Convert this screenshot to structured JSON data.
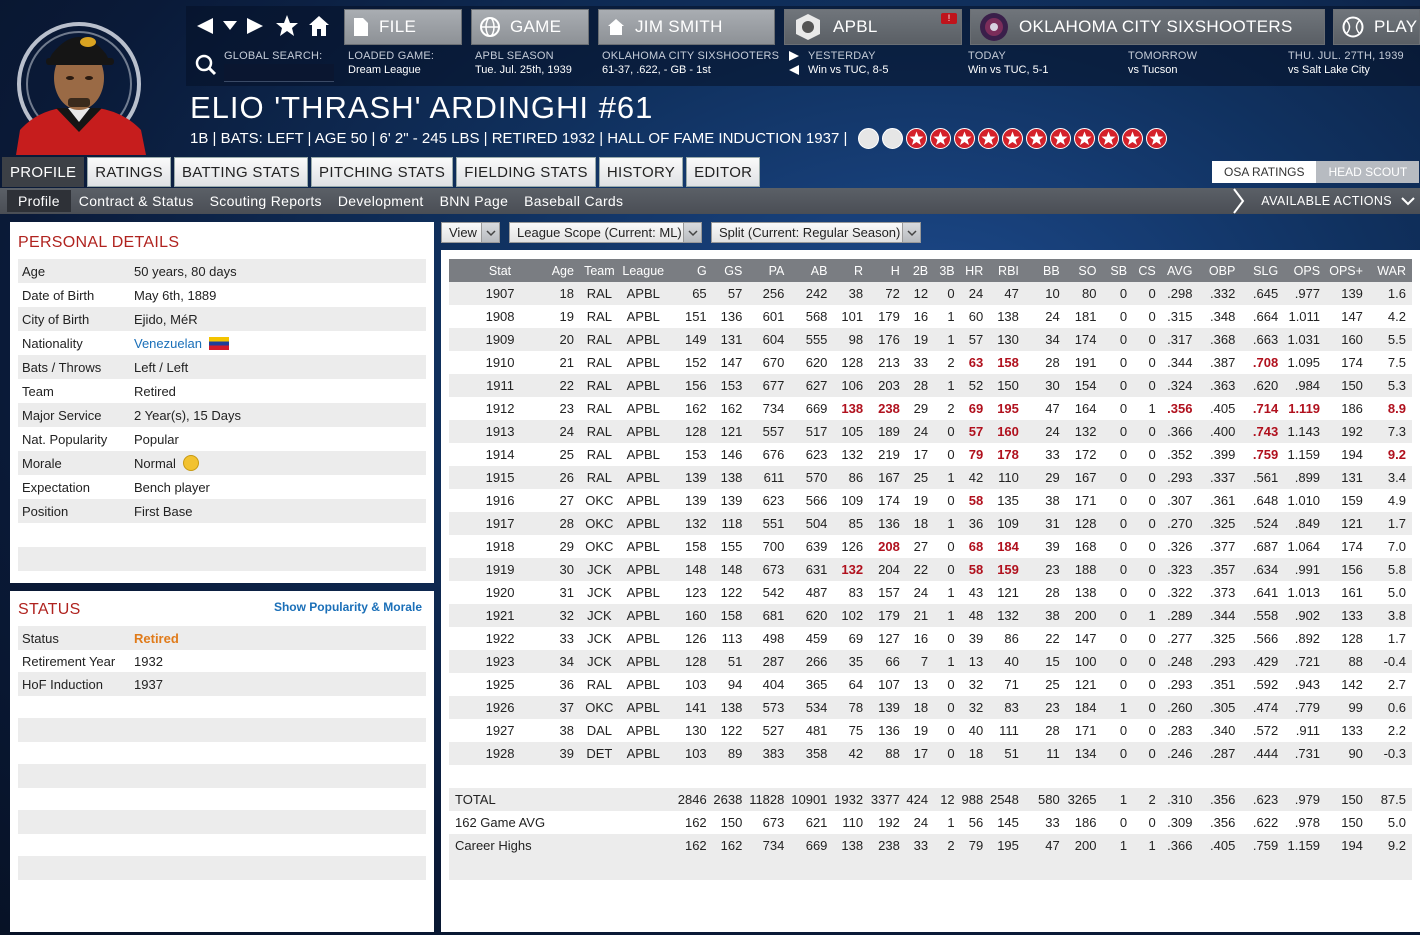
{
  "nav": {
    "file": "FILE",
    "game": "GAME",
    "manager": "JIM SMITH",
    "league": "APBL",
    "team": "OKLAHOMA CITY SIXSHOOTERS",
    "play": "PLAY",
    "league_alert": "!"
  },
  "info": {
    "search_label": "GLOBAL SEARCH:",
    "loaded_label": "LOADED GAME:",
    "loaded_value": "Dream League",
    "season_label": "APBL SEASON",
    "season_value": "Tue. Jul. 25th, 1939",
    "team_label": "OKLAHOMA CITY SIXSHOOTERS",
    "team_value": "61-37, .622, - GB - 1st",
    "yesterday_label": "YESTERDAY",
    "yesterday_value": "Win vs TUC, 8-5",
    "today_label": "TODAY",
    "today_value": "Win vs TUC, 5-1",
    "tomorrow_label": "TOMORROW",
    "tomorrow_value": "vs Tucson",
    "future_label": "THU. JUL. 27TH, 1939",
    "future_value": "vs Salt Lake City"
  },
  "player": {
    "name": "ELIO 'THRASH' ARDINGHI  #61",
    "subline": "1B | BATS: LEFT  |  AGE 50  |  6' 2\" - 245 LBS  |  RETIRED 1932  |  HALL OF FAME INDUCTION 1937  |",
    "stars_filled": 11,
    "stars_empty": 2
  },
  "tabs": [
    "PROFILE",
    "RATINGS",
    "BATTING STATS",
    "PITCHING STATS",
    "FIELDING STATS",
    "HISTORY",
    "EDITOR"
  ],
  "subtabs": [
    "Profile",
    "Contract & Status",
    "Scouting Reports",
    "Development",
    "BNN Page",
    "Baseball Cards"
  ],
  "ratings_toggle": {
    "osa": "OSA RATINGS",
    "scout": "HEAD SCOUT"
  },
  "available_actions": "AVAILABLE ACTIONS",
  "personal": {
    "title": "PERSONAL DETAILS",
    "rows": [
      {
        "k": "Age",
        "v": "50 years, 80 days"
      },
      {
        "k": "Date of Birth",
        "v": "May 6th, 1889"
      },
      {
        "k": "City of Birth",
        "v": "Ejido, MéR"
      },
      {
        "k": "Nationality",
        "v": "Venezuelan"
      },
      {
        "k": "Bats / Throws",
        "v": "Left / Left"
      },
      {
        "k": "Team",
        "v": "Retired"
      },
      {
        "k": "Major Service",
        "v": "2 Year(s), 15 Days"
      },
      {
        "k": "Nat. Popularity",
        "v": "Popular"
      },
      {
        "k": "Morale",
        "v": "Normal"
      },
      {
        "k": "Expectation",
        "v": "Bench player"
      },
      {
        "k": "Position",
        "v": "First Base"
      }
    ]
  },
  "status": {
    "title": "STATUS",
    "link": "Show Popularity & Morale",
    "rows": [
      {
        "k": "Status",
        "v": "Retired"
      },
      {
        "k": "Retirement Year",
        "v": "1932"
      },
      {
        "k": "HoF Induction",
        "v": "1937"
      }
    ]
  },
  "filters": {
    "view": "View",
    "scope": "League Scope  (Current: ML)",
    "split": "Split  (Current: Regular Season)"
  },
  "stats": {
    "headers": [
      "Stat",
      "Age",
      "Team",
      "League",
      "G",
      "GS",
      "PA",
      "AB",
      "R",
      "H",
      "2B",
      "3B",
      "HR",
      "RBI",
      "BB",
      "SO",
      "SB",
      "CS",
      "AVG",
      "OBP",
      "SLG",
      "OPS",
      "OPS+",
      "WAR"
    ],
    "rows": [
      [
        "1907",
        "18",
        "RAL",
        "APBL",
        "65",
        "57",
        "256",
        "242",
        "38",
        "72",
        "12",
        "0",
        "24",
        "47",
        "10",
        "80",
        "0",
        "0",
        ".298",
        ".332",
        ".645",
        ".977",
        "139",
        "1.6"
      ],
      [
        "1908",
        "19",
        "RAL",
        "APBL",
        "151",
        "136",
        "601",
        "568",
        "101",
        "179",
        "16",
        "1",
        "60",
        "138",
        "24",
        "181",
        "0",
        "0",
        ".315",
        ".348",
        ".664",
        "1.011",
        "147",
        "4.2"
      ],
      [
        "1909",
        "20",
        "RAL",
        "APBL",
        "149",
        "131",
        "604",
        "555",
        "98",
        "176",
        "19",
        "1",
        "57",
        "130",
        "34",
        "174",
        "0",
        "0",
        ".317",
        ".368",
        ".663",
        "1.031",
        "160",
        "5.5"
      ],
      [
        "1910",
        "21",
        "RAL",
        "APBL",
        "152",
        "147",
        "670",
        "620",
        "128",
        "213",
        "33",
        "2",
        "63",
        "158",
        "28",
        "191",
        "0",
        "0",
        ".344",
        ".387",
        ".708",
        "1.095",
        "174",
        "7.5"
      ],
      [
        "1911",
        "22",
        "RAL",
        "APBL",
        "156",
        "153",
        "677",
        "627",
        "106",
        "203",
        "28",
        "1",
        "52",
        "150",
        "30",
        "154",
        "0",
        "0",
        ".324",
        ".363",
        ".620",
        ".984",
        "150",
        "5.3"
      ],
      [
        "1912",
        "23",
        "RAL",
        "APBL",
        "162",
        "162",
        "734",
        "669",
        "138",
        "238",
        "29",
        "2",
        "69",
        "195",
        "47",
        "164",
        "0",
        "1",
        ".356",
        ".405",
        ".714",
        "1.119",
        "186",
        "8.9"
      ],
      [
        "1913",
        "24",
        "RAL",
        "APBL",
        "128",
        "121",
        "557",
        "517",
        "105",
        "189",
        "24",
        "0",
        "57",
        "160",
        "24",
        "132",
        "0",
        "0",
        ".366",
        ".400",
        ".743",
        "1.143",
        "192",
        "7.3"
      ],
      [
        "1914",
        "25",
        "RAL",
        "APBL",
        "153",
        "146",
        "676",
        "623",
        "132",
        "219",
        "17",
        "0",
        "79",
        "178",
        "33",
        "172",
        "0",
        "0",
        ".352",
        ".399",
        ".759",
        "1.159",
        "194",
        "9.2"
      ],
      [
        "1915",
        "26",
        "RAL",
        "APBL",
        "139",
        "138",
        "611",
        "570",
        "86",
        "167",
        "25",
        "1",
        "42",
        "110",
        "29",
        "167",
        "0",
        "0",
        ".293",
        ".337",
        ".561",
        ".899",
        "131",
        "3.4"
      ],
      [
        "1916",
        "27",
        "OKC",
        "APBL",
        "139",
        "139",
        "623",
        "566",
        "109",
        "174",
        "19",
        "0",
        "58",
        "135",
        "38",
        "171",
        "0",
        "0",
        ".307",
        ".361",
        ".648",
        "1.010",
        "159",
        "4.9"
      ],
      [
        "1917",
        "28",
        "OKC",
        "APBL",
        "132",
        "118",
        "551",
        "504",
        "85",
        "136",
        "18",
        "1",
        "36",
        "109",
        "31",
        "128",
        "0",
        "0",
        ".270",
        ".325",
        ".524",
        ".849",
        "121",
        "1.7"
      ],
      [
        "1918",
        "29",
        "OKC",
        "APBL",
        "158",
        "155",
        "700",
        "639",
        "126",
        "208",
        "27",
        "0",
        "68",
        "184",
        "39",
        "168",
        "0",
        "0",
        ".326",
        ".377",
        ".687",
        "1.064",
        "174",
        "7.0"
      ],
      [
        "1919",
        "30",
        "JCK",
        "APBL",
        "148",
        "148",
        "673",
        "631",
        "132",
        "204",
        "22",
        "0",
        "58",
        "159",
        "23",
        "188",
        "0",
        "0",
        ".323",
        ".357",
        ".634",
        ".991",
        "156",
        "5.8"
      ],
      [
        "1920",
        "31",
        "JCK",
        "APBL",
        "123",
        "122",
        "542",
        "487",
        "83",
        "157",
        "24",
        "1",
        "43",
        "121",
        "28",
        "138",
        "0",
        "0",
        ".322",
        ".373",
        ".641",
        "1.013",
        "161",
        "5.0"
      ],
      [
        "1921",
        "32",
        "JCK",
        "APBL",
        "160",
        "158",
        "681",
        "620",
        "102",
        "179",
        "21",
        "1",
        "48",
        "132",
        "38",
        "200",
        "0",
        "1",
        ".289",
        ".344",
        ".558",
        ".902",
        "133",
        "3.8"
      ],
      [
        "1922",
        "33",
        "JCK",
        "APBL",
        "126",
        "113",
        "498",
        "459",
        "69",
        "127",
        "16",
        "0",
        "39",
        "86",
        "22",
        "147",
        "0",
        "0",
        ".277",
        ".325",
        ".566",
        ".892",
        "128",
        "1.7"
      ],
      [
        "1923",
        "34",
        "JCK",
        "APBL",
        "128",
        "51",
        "287",
        "266",
        "35",
        "66",
        "7",
        "1",
        "13",
        "40",
        "15",
        "100",
        "0",
        "0",
        ".248",
        ".293",
        ".429",
        ".721",
        "88",
        "-0.4"
      ],
      [
        "1925",
        "36",
        "RAL",
        "APBL",
        "103",
        "94",
        "404",
        "365",
        "64",
        "107",
        "13",
        "0",
        "32",
        "71",
        "25",
        "121",
        "0",
        "0",
        ".293",
        ".351",
        ".592",
        ".943",
        "142",
        "2.7"
      ],
      [
        "1926",
        "37",
        "OKC",
        "APBL",
        "141",
        "138",
        "573",
        "534",
        "78",
        "139",
        "18",
        "0",
        "32",
        "83",
        "23",
        "184",
        "1",
        "0",
        ".260",
        ".305",
        ".474",
        ".779",
        "99",
        "0.6"
      ],
      [
        "1927",
        "38",
        "DAL",
        "APBL",
        "130",
        "122",
        "527",
        "481",
        "75",
        "136",
        "19",
        "0",
        "40",
        "111",
        "28",
        "171",
        "0",
        "0",
        ".283",
        ".340",
        ".572",
        ".911",
        "133",
        "2.2"
      ],
      [
        "1928",
        "39",
        "DET",
        "APBL",
        "103",
        "89",
        "383",
        "358",
        "42",
        "88",
        "17",
        "0",
        "18",
        "51",
        "11",
        "134",
        "0",
        "0",
        ".246",
        ".287",
        ".444",
        ".731",
        "90",
        "-0.3"
      ]
    ],
    "highlights": {
      "3": [
        12,
        13,
        20
      ],
      "5": [
        8,
        9,
        12,
        13,
        18,
        20,
        21,
        23
      ],
      "6": [
        12,
        13,
        20
      ],
      "7": [
        12,
        13,
        20,
        23
      ],
      "9": [
        12
      ],
      "11": [
        9,
        12,
        13
      ],
      "12": [
        8,
        12,
        13
      ]
    },
    "totals": [
      [
        "TOTAL",
        "",
        "",
        "",
        "2846",
        "2638",
        "11828",
        "10901",
        "1932",
        "3377",
        "424",
        "12",
        "988",
        "2548",
        "580",
        "3265",
        "1",
        "2",
        ".310",
        ".356",
        ".623",
        ".979",
        "150",
        "87.5"
      ],
      [
        "162 Game AVG",
        "",
        "",
        "",
        "162",
        "150",
        "673",
        "621",
        "110",
        "192",
        "24",
        "1",
        "56",
        "145",
        "33",
        "186",
        "0",
        "0",
        ".309",
        ".356",
        ".622",
        ".978",
        "150",
        "5.0"
      ],
      [
        "Career Highs",
        "",
        "",
        "",
        "162",
        "162",
        "734",
        "669",
        "138",
        "238",
        "33",
        "2",
        "79",
        "195",
        "47",
        "200",
        "1",
        "1",
        ".366",
        ".405",
        ".759",
        "1.159",
        "194",
        "9.2"
      ]
    ]
  }
}
